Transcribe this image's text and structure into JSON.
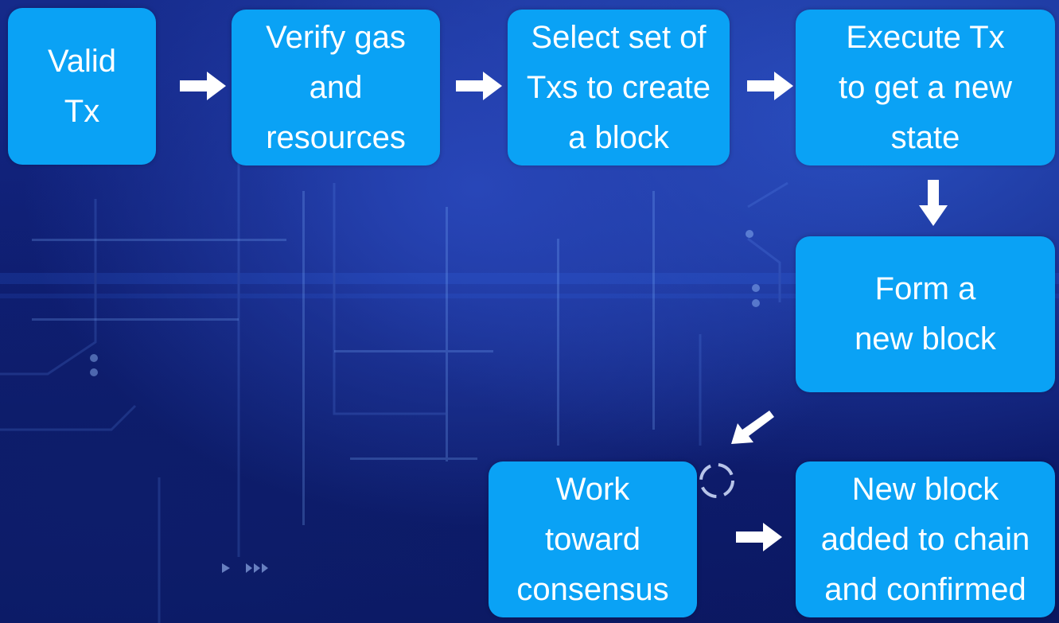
{
  "steps": [
    {
      "id": "valid-tx",
      "lines": [
        "Valid",
        "Tx"
      ]
    },
    {
      "id": "verify-gas",
      "lines": [
        "Verify gas",
        "and",
        "resources"
      ]
    },
    {
      "id": "select-txs",
      "lines": [
        "Select set of",
        "Txs to create",
        "a block"
      ]
    },
    {
      "id": "execute-tx",
      "lines": [
        "Execute Tx",
        "to get a new",
        "state"
      ]
    },
    {
      "id": "form-block",
      "lines": [
        "Form a",
        "new block"
      ]
    },
    {
      "id": "new-block-added",
      "lines": [
        "New block",
        "added to chain",
        "and confirmed"
      ]
    },
    {
      "id": "work-consensus",
      "lines": [
        "Work",
        "toward",
        "consensus"
      ]
    }
  ],
  "colors": {
    "box": "#0aa2f5",
    "text": "#ffffff",
    "arrow": "#ffffff"
  }
}
